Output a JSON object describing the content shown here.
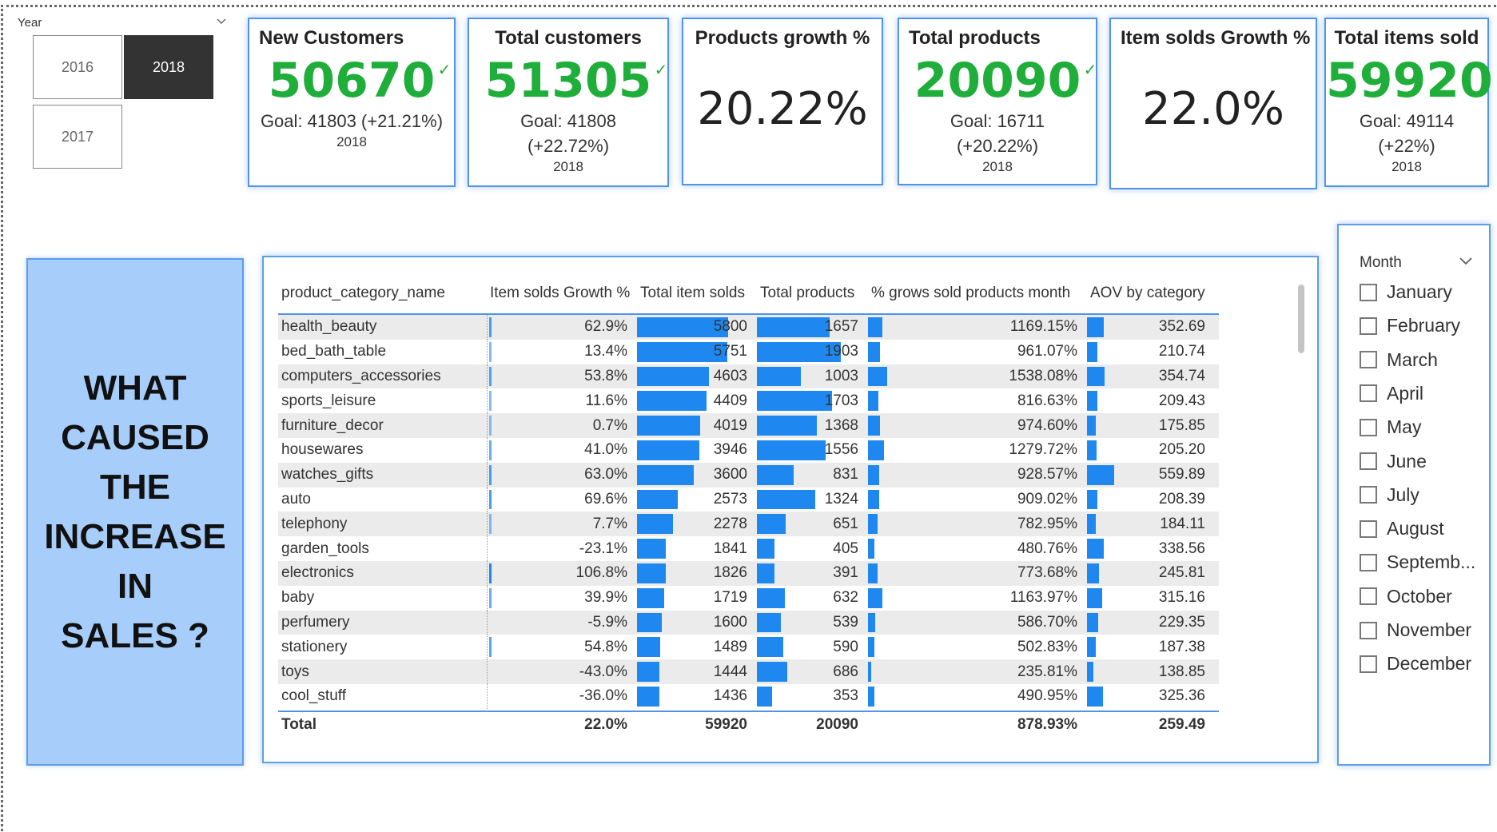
{
  "year_slicer": {
    "label": "Year",
    "options": [
      "2016",
      "2018",
      "2017"
    ],
    "selected": "2018"
  },
  "kpis": [
    {
      "title": "New Customers",
      "value": "50670",
      "check": "✓",
      "goal": "Goal: 41803 (+21.21%)",
      "year": "2018"
    },
    {
      "title": "Total customers",
      "value": "51305",
      "check": "✓",
      "goal_line1": "Goal: 41808",
      "goal_line2": "(+22.72%)",
      "year": "2018"
    },
    {
      "title": "Products growth %",
      "value": "20.22%"
    },
    {
      "title": "Total products",
      "value": "20090",
      "check": "✓",
      "goal_line1": "Goal: 16711",
      "goal_line2": "(+20.22%)",
      "year": "2018"
    },
    {
      "title": "Item solds Growth %",
      "value": "22.0%"
    },
    {
      "title": "Total items sold",
      "value": "59920",
      "check": "✓",
      "goal_line1": "Goal: 49114",
      "goal_line2": "(+22%)",
      "year": "2018"
    }
  ],
  "question": {
    "lines": [
      "WHAT",
      "CAUSED",
      "THE",
      "INCREASE",
      "IN",
      "SALES ?"
    ]
  },
  "table": {
    "columns": [
      "product_category_name",
      "Item solds Growth %",
      "Total item solds",
      "Total products",
      "% grows sold products month",
      "AOV by category"
    ],
    "rows": [
      [
        "health_beauty",
        "62.9%",
        "5800",
        "1657",
        "1169.15%",
        "352.69"
      ],
      [
        "bed_bath_table",
        "13.4%",
        "5751",
        "1903",
        "961.07%",
        "210.74"
      ],
      [
        "computers_accessories",
        "53.8%",
        "4603",
        "1003",
        "1538.08%",
        "354.74"
      ],
      [
        "sports_leisure",
        "11.6%",
        "4409",
        "1703",
        "816.63%",
        "209.43"
      ],
      [
        "furniture_decor",
        "0.7%",
        "4019",
        "1368",
        "974.60%",
        "175.85"
      ],
      [
        "housewares",
        "41.0%",
        "3946",
        "1556",
        "1279.72%",
        "205.20"
      ],
      [
        "watches_gifts",
        "63.0%",
        "3600",
        "831",
        "928.57%",
        "559.89"
      ],
      [
        "auto",
        "69.6%",
        "2573",
        "1324",
        "909.02%",
        "208.39"
      ],
      [
        "telephony",
        "7.7%",
        "2278",
        "651",
        "782.95%",
        "184.11"
      ],
      [
        "garden_tools",
        "-23.1%",
        "1841",
        "405",
        "480.76%",
        "338.56"
      ],
      [
        "electronics",
        "106.8%",
        "1826",
        "391",
        "773.68%",
        "245.81"
      ],
      [
        "baby",
        "39.9%",
        "1719",
        "632",
        "1163.97%",
        "315.16"
      ],
      [
        "perfumery",
        "-5.9%",
        "1600",
        "539",
        "586.70%",
        "229.35"
      ],
      [
        "stationery",
        "54.8%",
        "1489",
        "590",
        "502.83%",
        "187.38"
      ],
      [
        "toys",
        "-43.0%",
        "1444",
        "686",
        "235.81%",
        "138.85"
      ],
      [
        "cool_stuff",
        "-36.0%",
        "1436",
        "353",
        "490.95%",
        "325.36"
      ]
    ],
    "total": [
      "Total",
      "22.0%",
      "59920",
      "20090",
      "878.93%",
      "259.49"
    ]
  },
  "month_slicer": {
    "label": "Month",
    "months": [
      "January",
      "February",
      "March",
      "April",
      "May",
      "June",
      "July",
      "August",
      "Septemb...",
      "October",
      "November",
      "December"
    ]
  },
  "colors": {
    "bar": "#1e88f0",
    "kpi_green": "#1fae3a",
    "panel_blue": "#a7cdfb",
    "border_blue": "#4f94e8"
  }
}
